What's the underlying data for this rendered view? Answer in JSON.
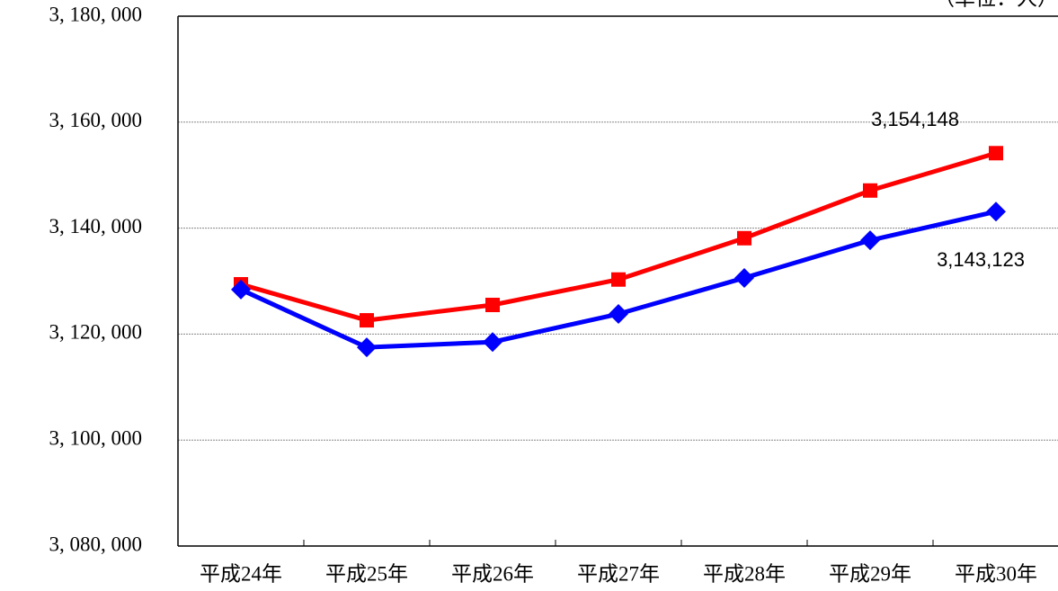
{
  "chart_data": {
    "type": "line",
    "unit_note": "（単位：人）",
    "categories": [
      "平成24年",
      "平成25年",
      "平成26年",
      "平成27年",
      "平成28年",
      "平成29年",
      "平成30年"
    ],
    "series": [
      {
        "color": "#ff0000",
        "marker": "square",
        "values": [
          3129400,
          3122600,
          3125500,
          3130300,
          3138100,
          3147100,
          3154148
        ],
        "value_labels": [
          null,
          null,
          null,
          null,
          null,
          null,
          "3,154,148"
        ]
      },
      {
        "color": "#0000ff",
        "marker": "diamond",
        "values": [
          3128400,
          3117500,
          3118500,
          3123800,
          3130600,
          3137700,
          3143123
        ],
        "value_labels": [
          null,
          null,
          null,
          null,
          null,
          null,
          "3,143,123"
        ]
      }
    ],
    "ylim": [
      3080000,
      3180000
    ],
    "yticks": [
      {
        "value": 3080000,
        "label": "3, 080, 000"
      },
      {
        "value": 3100000,
        "label": "3, 100, 000"
      },
      {
        "value": 3120000,
        "label": "3, 120, 000"
      },
      {
        "value": 3140000,
        "label": "3, 140, 000"
      },
      {
        "value": 3160000,
        "label": "3, 160, 000"
      },
      {
        "value": 3180000,
        "label": "3, 180, 000"
      }
    ],
    "grid": true
  }
}
